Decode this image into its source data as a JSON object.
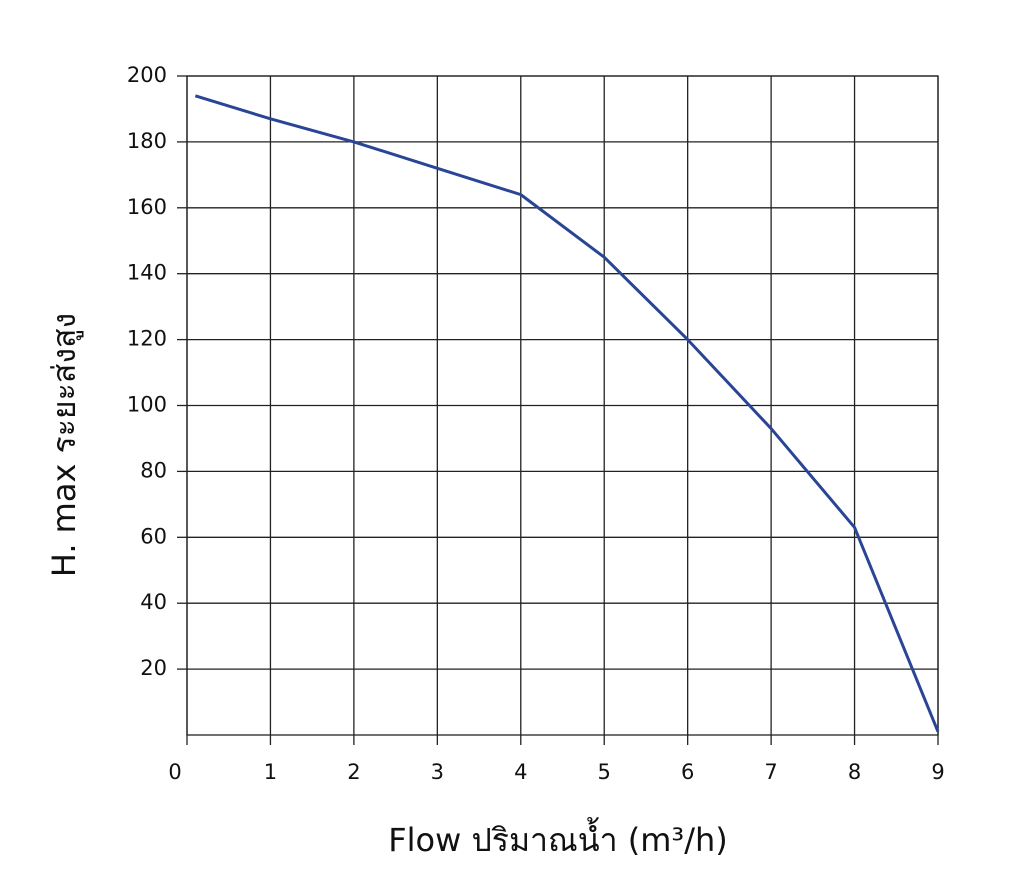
{
  "chart_data": {
    "type": "line",
    "x_label": "Flow  ปริมาณน้ำ (m³/h)",
    "y_label": "H. max  ระยะส่งสูง",
    "x": [
      0.1,
      1,
      2,
      3,
      4,
      5,
      6,
      7,
      8,
      9
    ],
    "values": [
      194,
      187,
      180,
      172,
      164,
      145,
      120,
      93,
      63,
      1
    ],
    "color": "#2a4596",
    "xlim": [
      0,
      9
    ],
    "xticks": [
      0,
      1,
      2,
      3,
      4,
      5,
      6,
      7,
      8,
      9
    ],
    "ylim": [
      0,
      200
    ],
    "yticks": [
      20,
      40,
      60,
      80,
      100,
      120,
      140,
      160,
      180,
      200
    ],
    "grid": true
  }
}
